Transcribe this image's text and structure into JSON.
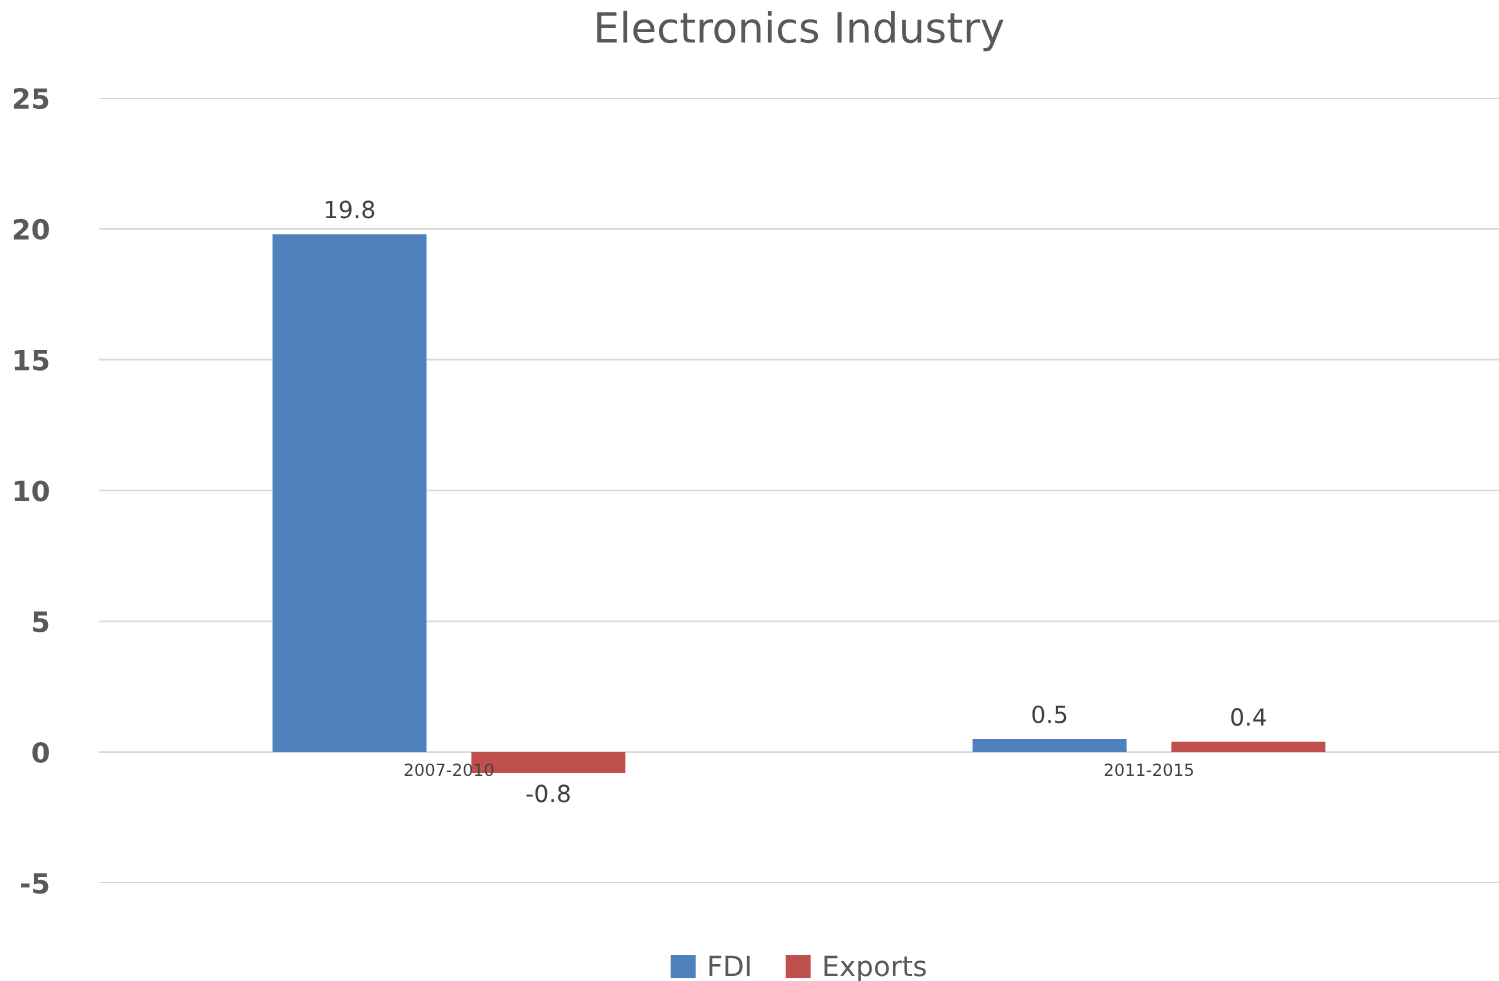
{
  "chart_data": {
    "type": "bar",
    "title": "Electronics Industry",
    "categories": [
      "2007-2010",
      "2011-2015"
    ],
    "series": [
      {
        "name": "FDI",
        "color": "#4f81bd",
        "values": [
          19.8,
          0.5
        ]
      },
      {
        "name": "Exports",
        "color": "#c0504d",
        "values": [
          -0.8,
          0.4
        ]
      }
    ],
    "ylim": [
      -5,
      25
    ],
    "yticks": [
      -5,
      0,
      5,
      10,
      15,
      20,
      25
    ],
    "grid": "y",
    "legend": "bottom",
    "data_labels": true
  }
}
